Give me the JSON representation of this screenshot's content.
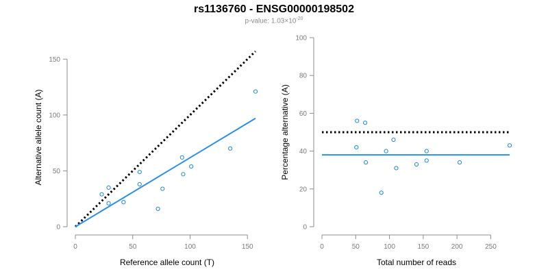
{
  "header": {
    "title": "rs1136760 - ENSG00000198502",
    "pvalue_text": "p-value: 1.03×10",
    "pvalue_exp": "-20"
  },
  "colors": {
    "points": "#1f88d8",
    "fit_line": "#2a8fe6",
    "reference_line": "#000000",
    "axis": "#8c8c8c"
  },
  "chart_data": [
    {
      "type": "scatter",
      "xlabel": "Reference allele count (T)",
      "ylabel": "Alternative allele count (A)",
      "xlim": [
        0,
        160
      ],
      "ylim": [
        0,
        160
      ],
      "xticks": [
        0,
        50,
        100,
        150
      ],
      "yticks": [
        0,
        50,
        100,
        150
      ],
      "points": [
        {
          "x": 23,
          "y": 29
        },
        {
          "x": 29,
          "y": 35
        },
        {
          "x": 29,
          "y": 21
        },
        {
          "x": 42,
          "y": 22
        },
        {
          "x": 56,
          "y": 49
        },
        {
          "x": 56,
          "y": 38
        },
        {
          "x": 72,
          "y": 16
        },
        {
          "x": 76,
          "y": 34
        },
        {
          "x": 93,
          "y": 62
        },
        {
          "x": 94,
          "y": 47
        },
        {
          "x": 101,
          "y": 54
        },
        {
          "x": 135,
          "y": 70
        },
        {
          "x": 157,
          "y": 121
        }
      ],
      "fit_line": {
        "x": [
          0,
          157
        ],
        "y": [
          0,
          97
        ],
        "style": "solid"
      },
      "reference_line": {
        "x": [
          0,
          157
        ],
        "y": [
          0,
          157
        ],
        "style": "dotted"
      }
    },
    {
      "type": "scatter",
      "xlabel": "Total number of reads",
      "ylabel": "Percentage alternative (A)",
      "xlim": [
        0,
        280
      ],
      "ylim": [
        0,
        100
      ],
      "xticks": [
        0,
        50,
        100,
        150,
        200,
        250
      ],
      "yticks": [
        0,
        20,
        40,
        60,
        80,
        100
      ],
      "points": [
        {
          "x": 51,
          "y": 42
        },
        {
          "x": 52,
          "y": 56
        },
        {
          "x": 64,
          "y": 55
        },
        {
          "x": 65,
          "y": 34
        },
        {
          "x": 88,
          "y": 18
        },
        {
          "x": 95,
          "y": 40
        },
        {
          "x": 106,
          "y": 46
        },
        {
          "x": 110,
          "y": 31
        },
        {
          "x": 140,
          "y": 33
        },
        {
          "x": 155,
          "y": 40
        },
        {
          "x": 155,
          "y": 35
        },
        {
          "x": 204,
          "y": 34
        },
        {
          "x": 278,
          "y": 43
        }
      ],
      "fit_line": {
        "x": [
          0,
          278
        ],
        "y": [
          38,
          38
        ],
        "style": "solid"
      },
      "reference_line": {
        "x": [
          0,
          278
        ],
        "y": [
          50,
          50
        ],
        "style": "dotted"
      }
    }
  ]
}
